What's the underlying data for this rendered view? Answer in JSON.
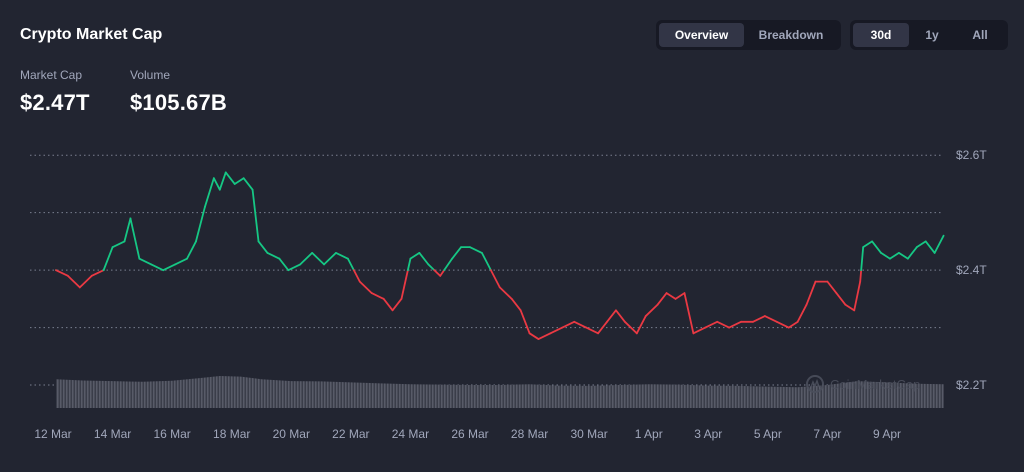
{
  "header": {
    "title": "Crypto Market Cap"
  },
  "stats": [
    {
      "label": "Market Cap",
      "value": "$2.47T"
    },
    {
      "label": "Volume",
      "value": "$105.67B"
    }
  ],
  "view_toggle": {
    "items": [
      "Overview",
      "Breakdown"
    ],
    "active": "Overview"
  },
  "range_toggle": {
    "items": [
      "30d",
      "1y",
      "All"
    ],
    "active": "30d"
  },
  "watermark": "CoinMarketCap",
  "colors": {
    "up": "#16c784",
    "down": "#ea3943",
    "grid": "#7a7f90",
    "volume": "#4a4d5a",
    "background": "#222531"
  },
  "chart_data": {
    "type": "line",
    "title": "",
    "xlabel": "",
    "ylabel": "",
    "ylim": [
      2.16,
      2.63
    ],
    "y_ticks": [
      "$2.6T",
      "$2.4T",
      "$2.2T"
    ],
    "y_tick_values": [
      2.6,
      2.4,
      2.2
    ],
    "baseline": 2.4,
    "x_ticks": [
      "12 Mar",
      "14 Mar",
      "16 Mar",
      "18 Mar",
      "20 Mar",
      "22 Mar",
      "24 Mar",
      "26 Mar",
      "28 Mar",
      "30 Mar",
      "1 Apr",
      "3 Apr",
      "5 Apr",
      "7 Apr",
      "9 Apr"
    ],
    "x_tick_values": [
      12,
      14,
      16,
      18,
      20,
      22,
      24,
      26,
      28,
      30,
      32,
      34,
      36,
      38,
      40
    ],
    "x_unit": "day of March",
    "series": [
      {
        "values": [
          [
            12.1,
            2.4
          ],
          [
            12.5,
            2.39
          ],
          [
            12.9,
            2.37
          ],
          [
            13.3,
            2.39
          ],
          [
            13.7,
            2.4
          ],
          [
            14.0,
            2.44
          ],
          [
            14.4,
            2.45
          ],
          [
            14.6,
            2.49
          ],
          [
            14.9,
            2.42
          ],
          [
            15.3,
            2.41
          ],
          [
            15.7,
            2.4
          ],
          [
            16.1,
            2.41
          ],
          [
            16.5,
            2.42
          ],
          [
            16.8,
            2.45
          ],
          [
            17.1,
            2.51
          ],
          [
            17.4,
            2.56
          ],
          [
            17.6,
            2.54
          ],
          [
            17.8,
            2.57
          ],
          [
            18.1,
            2.55
          ],
          [
            18.4,
            2.56
          ],
          [
            18.7,
            2.54
          ],
          [
            18.9,
            2.45
          ],
          [
            19.2,
            2.43
          ],
          [
            19.6,
            2.42
          ],
          [
            19.9,
            2.4
          ],
          [
            20.3,
            2.41
          ],
          [
            20.7,
            2.43
          ],
          [
            21.1,
            2.41
          ],
          [
            21.5,
            2.43
          ],
          [
            21.9,
            2.42
          ],
          [
            22.3,
            2.38
          ],
          [
            22.7,
            2.36
          ],
          [
            23.1,
            2.35
          ],
          [
            23.4,
            2.33
          ],
          [
            23.7,
            2.35
          ],
          [
            24.0,
            2.42
          ],
          [
            24.3,
            2.43
          ],
          [
            24.6,
            2.41
          ],
          [
            25.0,
            2.39
          ],
          [
            25.4,
            2.42
          ],
          [
            25.7,
            2.44
          ],
          [
            26.0,
            2.44
          ],
          [
            26.4,
            2.43
          ],
          [
            26.7,
            2.4
          ],
          [
            27.0,
            2.37
          ],
          [
            27.4,
            2.35
          ],
          [
            27.7,
            2.33
          ],
          [
            28.0,
            2.29
          ],
          [
            28.3,
            2.28
          ],
          [
            28.7,
            2.29
          ],
          [
            29.1,
            2.3
          ],
          [
            29.5,
            2.31
          ],
          [
            29.9,
            2.3
          ],
          [
            30.3,
            2.29
          ],
          [
            30.6,
            2.31
          ],
          [
            30.9,
            2.33
          ],
          [
            31.2,
            2.31
          ],
          [
            31.6,
            2.29
          ],
          [
            31.9,
            2.32
          ],
          [
            32.3,
            2.34
          ],
          [
            32.6,
            2.36
          ],
          [
            32.9,
            2.35
          ],
          [
            33.2,
            2.36
          ],
          [
            33.5,
            2.29
          ],
          [
            33.9,
            2.3
          ],
          [
            34.3,
            2.31
          ],
          [
            34.7,
            2.3
          ],
          [
            35.1,
            2.31
          ],
          [
            35.5,
            2.31
          ],
          [
            35.9,
            2.32
          ],
          [
            36.3,
            2.31
          ],
          [
            36.7,
            2.3
          ],
          [
            37.0,
            2.31
          ],
          [
            37.3,
            2.34
          ],
          [
            37.6,
            2.38
          ],
          [
            38.0,
            2.38
          ],
          [
            38.3,
            2.36
          ],
          [
            38.6,
            2.34
          ],
          [
            38.9,
            2.33
          ],
          [
            39.1,
            2.38
          ],
          [
            39.2,
            2.44
          ],
          [
            39.5,
            2.45
          ],
          [
            39.8,
            2.43
          ],
          [
            40.1,
            2.42
          ],
          [
            40.4,
            2.43
          ],
          [
            40.7,
            2.42
          ],
          [
            41.0,
            2.44
          ],
          [
            41.3,
            2.45
          ],
          [
            41.6,
            2.43
          ],
          [
            41.9,
            2.46
          ]
        ]
      },
      {
        "name": "Volume",
        "values": [
          [
            12.1,
            0.9
          ],
          [
            13.0,
            0.86
          ],
          [
            14.0,
            0.84
          ],
          [
            15.0,
            0.82
          ],
          [
            16.0,
            0.85
          ],
          [
            17.0,
            0.94
          ],
          [
            17.6,
            1.0
          ],
          [
            18.3,
            0.98
          ],
          [
            19.0,
            0.9
          ],
          [
            20.0,
            0.84
          ],
          [
            21.0,
            0.83
          ],
          [
            22.0,
            0.8
          ],
          [
            23.0,
            0.77
          ],
          [
            24.0,
            0.74
          ],
          [
            25.0,
            0.73
          ],
          [
            26.0,
            0.72
          ],
          [
            27.0,
            0.72
          ],
          [
            28.0,
            0.74
          ],
          [
            29.0,
            0.7
          ],
          [
            30.0,
            0.69
          ],
          [
            31.0,
            0.72
          ],
          [
            32.0,
            0.74
          ],
          [
            33.0,
            0.73
          ],
          [
            34.0,
            0.7
          ],
          [
            35.0,
            0.69
          ],
          [
            36.0,
            0.67
          ],
          [
            37.0,
            0.65
          ],
          [
            38.0,
            0.72
          ],
          [
            39.0,
            0.84
          ],
          [
            40.0,
            0.8
          ],
          [
            41.0,
            0.76
          ],
          [
            41.9,
            0.74
          ]
        ]
      }
    ],
    "grid": true,
    "legend": "none"
  }
}
